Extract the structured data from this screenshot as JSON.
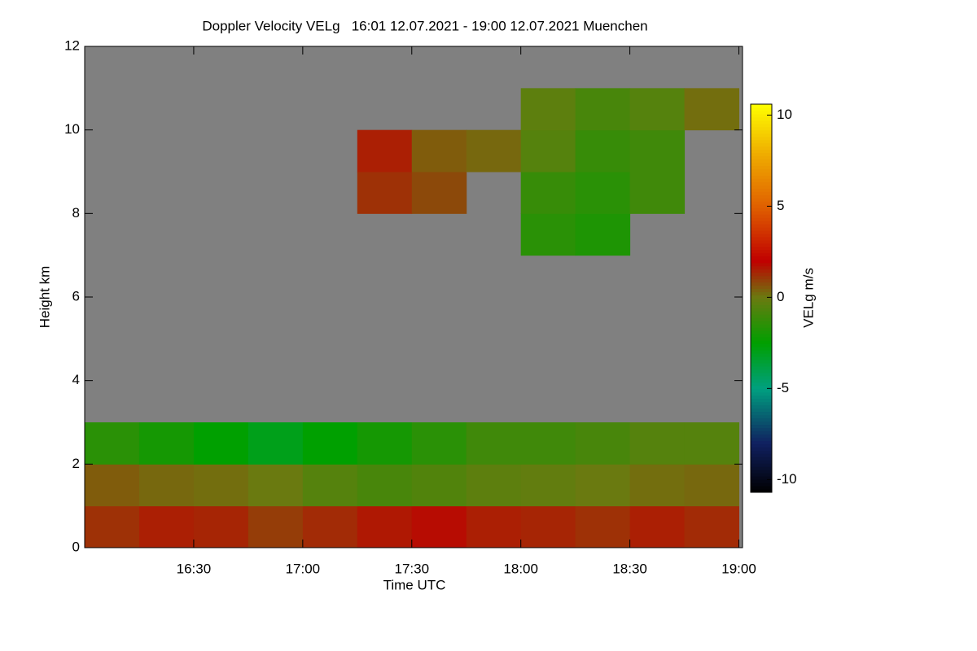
{
  "chart_data": {
    "type": "heatmap",
    "title": "Doppler Velocity VELg   16:01 12.07.2021 - 19:00 12.07.2021 Muenchen",
    "x_label": "Time UTC",
    "y_label": "Height km",
    "xlim": [
      960,
      1141
    ],
    "xticks": [
      {
        "value": 990,
        "label": "16:30"
      },
      {
        "value": 1020,
        "label": "17:00"
      },
      {
        "value": 1050,
        "label": "17:30"
      },
      {
        "value": 1080,
        "label": "18:00"
      },
      {
        "value": 1110,
        "label": "18:30"
      },
      {
        "value": 1140,
        "label": "19:00"
      }
    ],
    "ylim": [
      0,
      12
    ],
    "yticks": [
      0,
      2,
      4,
      6,
      8,
      10,
      12
    ],
    "xbins": [
      960,
      975,
      990,
      1005,
      1020,
      1035,
      1050,
      1065,
      1080,
      1095,
      1110,
      1125,
      1140
    ],
    "ybins": [
      0,
      1,
      2,
      3,
      4,
      5,
      6,
      7,
      8,
      9,
      10,
      11,
      12
    ],
    "z": [
      [
        1.2,
        1.5,
        1.4,
        1.0,
        1.3,
        1.6,
        1.8,
        1.5,
        1.4,
        1.2,
        1.5,
        1.3
      ],
      [
        0.5,
        0.3,
        0.2,
        0,
        -0.5,
        -0.8,
        -0.6,
        -0.3,
        -0.2,
        0,
        0.2,
        0.3
      ],
      [
        -1.5,
        -2,
        -2.5,
        -3,
        -2.5,
        -2,
        -1.5,
        -1,
        -1,
        -0.8,
        -0.5,
        -0.5
      ],
      [
        null,
        null,
        null,
        null,
        null,
        null,
        null,
        null,
        null,
        null,
        null,
        null
      ],
      [
        null,
        null,
        null,
        null,
        null,
        null,
        null,
        null,
        null,
        null,
        null,
        null
      ],
      [
        null,
        null,
        null,
        null,
        null,
        null,
        null,
        null,
        null,
        null,
        null,
        null
      ],
      [
        null,
        null,
        null,
        null,
        null,
        null,
        null,
        null,
        null,
        null,
        null,
        null
      ],
      [
        null,
        null,
        null,
        null,
        null,
        null,
        null,
        null,
        -1.5,
        -1.8,
        null,
        null
      ],
      [
        null,
        null,
        null,
        null,
        null,
        1.2,
        0.8,
        null,
        -1.2,
        -1.5,
        -1.0,
        null
      ],
      [
        null,
        null,
        null,
        null,
        null,
        1.5,
        0.5,
        0.3,
        -0.5,
        -1.2,
        -1.0,
        null
      ],
      [
        null,
        null,
        null,
        null,
        null,
        null,
        null,
        null,
        -0.3,
        -0.8,
        -0.5,
        0.2
      ],
      [
        null,
        null,
        null,
        null,
        null,
        null,
        null,
        null,
        null,
        null,
        null,
        null
      ]
    ],
    "no_signal_color": "#808080",
    "zlim": [
      -10.7,
      10.6
    ],
    "zticks": [
      -10,
      -5,
      0,
      5,
      10
    ],
    "colorbar_label": "VELg m/s",
    "colorscale": [
      [
        -10.7,
        "#000000"
      ],
      [
        -8,
        "#102060"
      ],
      [
        -5,
        "#00a080"
      ],
      [
        -2.5,
        "#00a000"
      ],
      [
        0,
        "#6a7a10"
      ],
      [
        2,
        "#c00000"
      ],
      [
        5,
        "#e06000"
      ],
      [
        8,
        "#f0b000"
      ],
      [
        10.6,
        "#ffff00"
      ]
    ]
  }
}
